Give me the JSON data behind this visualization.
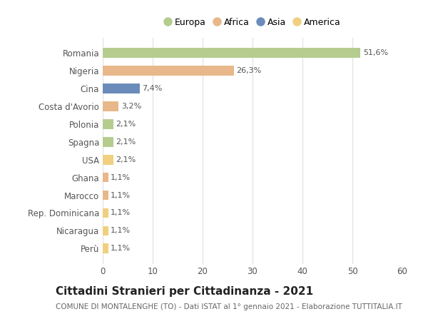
{
  "categories": [
    "Romania",
    "Nigeria",
    "Cina",
    "Costa d'Avorio",
    "Polonia",
    "Spagna",
    "USA",
    "Ghana",
    "Marocco",
    "Rep. Dominicana",
    "Nicaragua",
    "Perù"
  ],
  "values": [
    51.6,
    26.3,
    7.4,
    3.2,
    2.1,
    2.1,
    2.1,
    1.1,
    1.1,
    1.1,
    1.1,
    1.1
  ],
  "labels": [
    "51,6%",
    "26,3%",
    "7,4%",
    "3,2%",
    "2,1%",
    "2,1%",
    "2,1%",
    "1,1%",
    "1,1%",
    "1,1%",
    "1,1%",
    "1,1%"
  ],
  "colors": [
    "#b5cc8e",
    "#e8b88a",
    "#6b8cba",
    "#e8b88a",
    "#b5cc8e",
    "#b5cc8e",
    "#f0d080",
    "#e8b88a",
    "#e8b88a",
    "#f0d080",
    "#f0d080",
    "#f0d080"
  ],
  "legend_labels": [
    "Europa",
    "Africa",
    "Asia",
    "America"
  ],
  "legend_colors": [
    "#b5cc8e",
    "#e8b88a",
    "#6b8cba",
    "#f0d080"
  ],
  "xlim": [
    0,
    60
  ],
  "xticks": [
    0,
    10,
    20,
    30,
    40,
    50,
    60
  ],
  "title": "Cittadini Stranieri per Cittadinanza - 2021",
  "subtitle": "COMUNE DI MONTALENGHE (TO) - Dati ISTAT al 1° gennaio 2021 - Elaborazione TUTTITALIA.IT",
  "background_color": "#ffffff",
  "grid_color": "#e0e0e0",
  "bar_height": 0.55,
  "label_fontsize": 8.0,
  "tick_fontsize": 8.5,
  "title_fontsize": 11,
  "subtitle_fontsize": 7.5
}
